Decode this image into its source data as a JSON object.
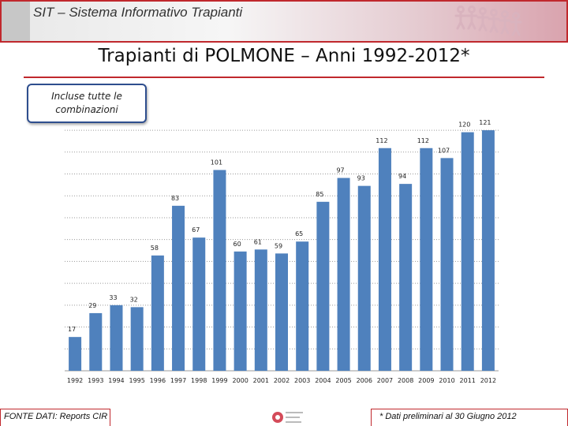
{
  "header": {
    "title": "SIT – Sistema Informativo Trapianti",
    "logo_icon": "people-chain-icon"
  },
  "title": "Trapianti di POLMONE – Anni 1992-2012*",
  "note_box": "Incluse tutte le combinazioni",
  "chart_data": {
    "type": "bar",
    "categories": [
      "1992",
      "1993",
      "1994",
      "1995",
      "1996",
      "1997",
      "1998",
      "1999",
      "2000",
      "2001",
      "2002",
      "2003",
      "2004",
      "2005",
      "2006",
      "2007",
      "2008",
      "2009",
      "2010",
      "2011",
      "2012"
    ],
    "values": [
      17,
      29,
      33,
      32,
      58,
      83,
      67,
      101,
      60,
      61,
      59,
      65,
      85,
      97,
      93,
      112,
      94,
      112,
      107,
      120,
      121
    ],
    "ylim": [
      0,
      125
    ],
    "grid": true,
    "bar_color": "#4f81bd"
  },
  "footer": {
    "source": "FONTE DATI:  Reports CIR",
    "logo_icon": "centro-nazionale-trapianti-logo-icon",
    "note": "* Dati preliminari al 30 Giugno 2012"
  }
}
